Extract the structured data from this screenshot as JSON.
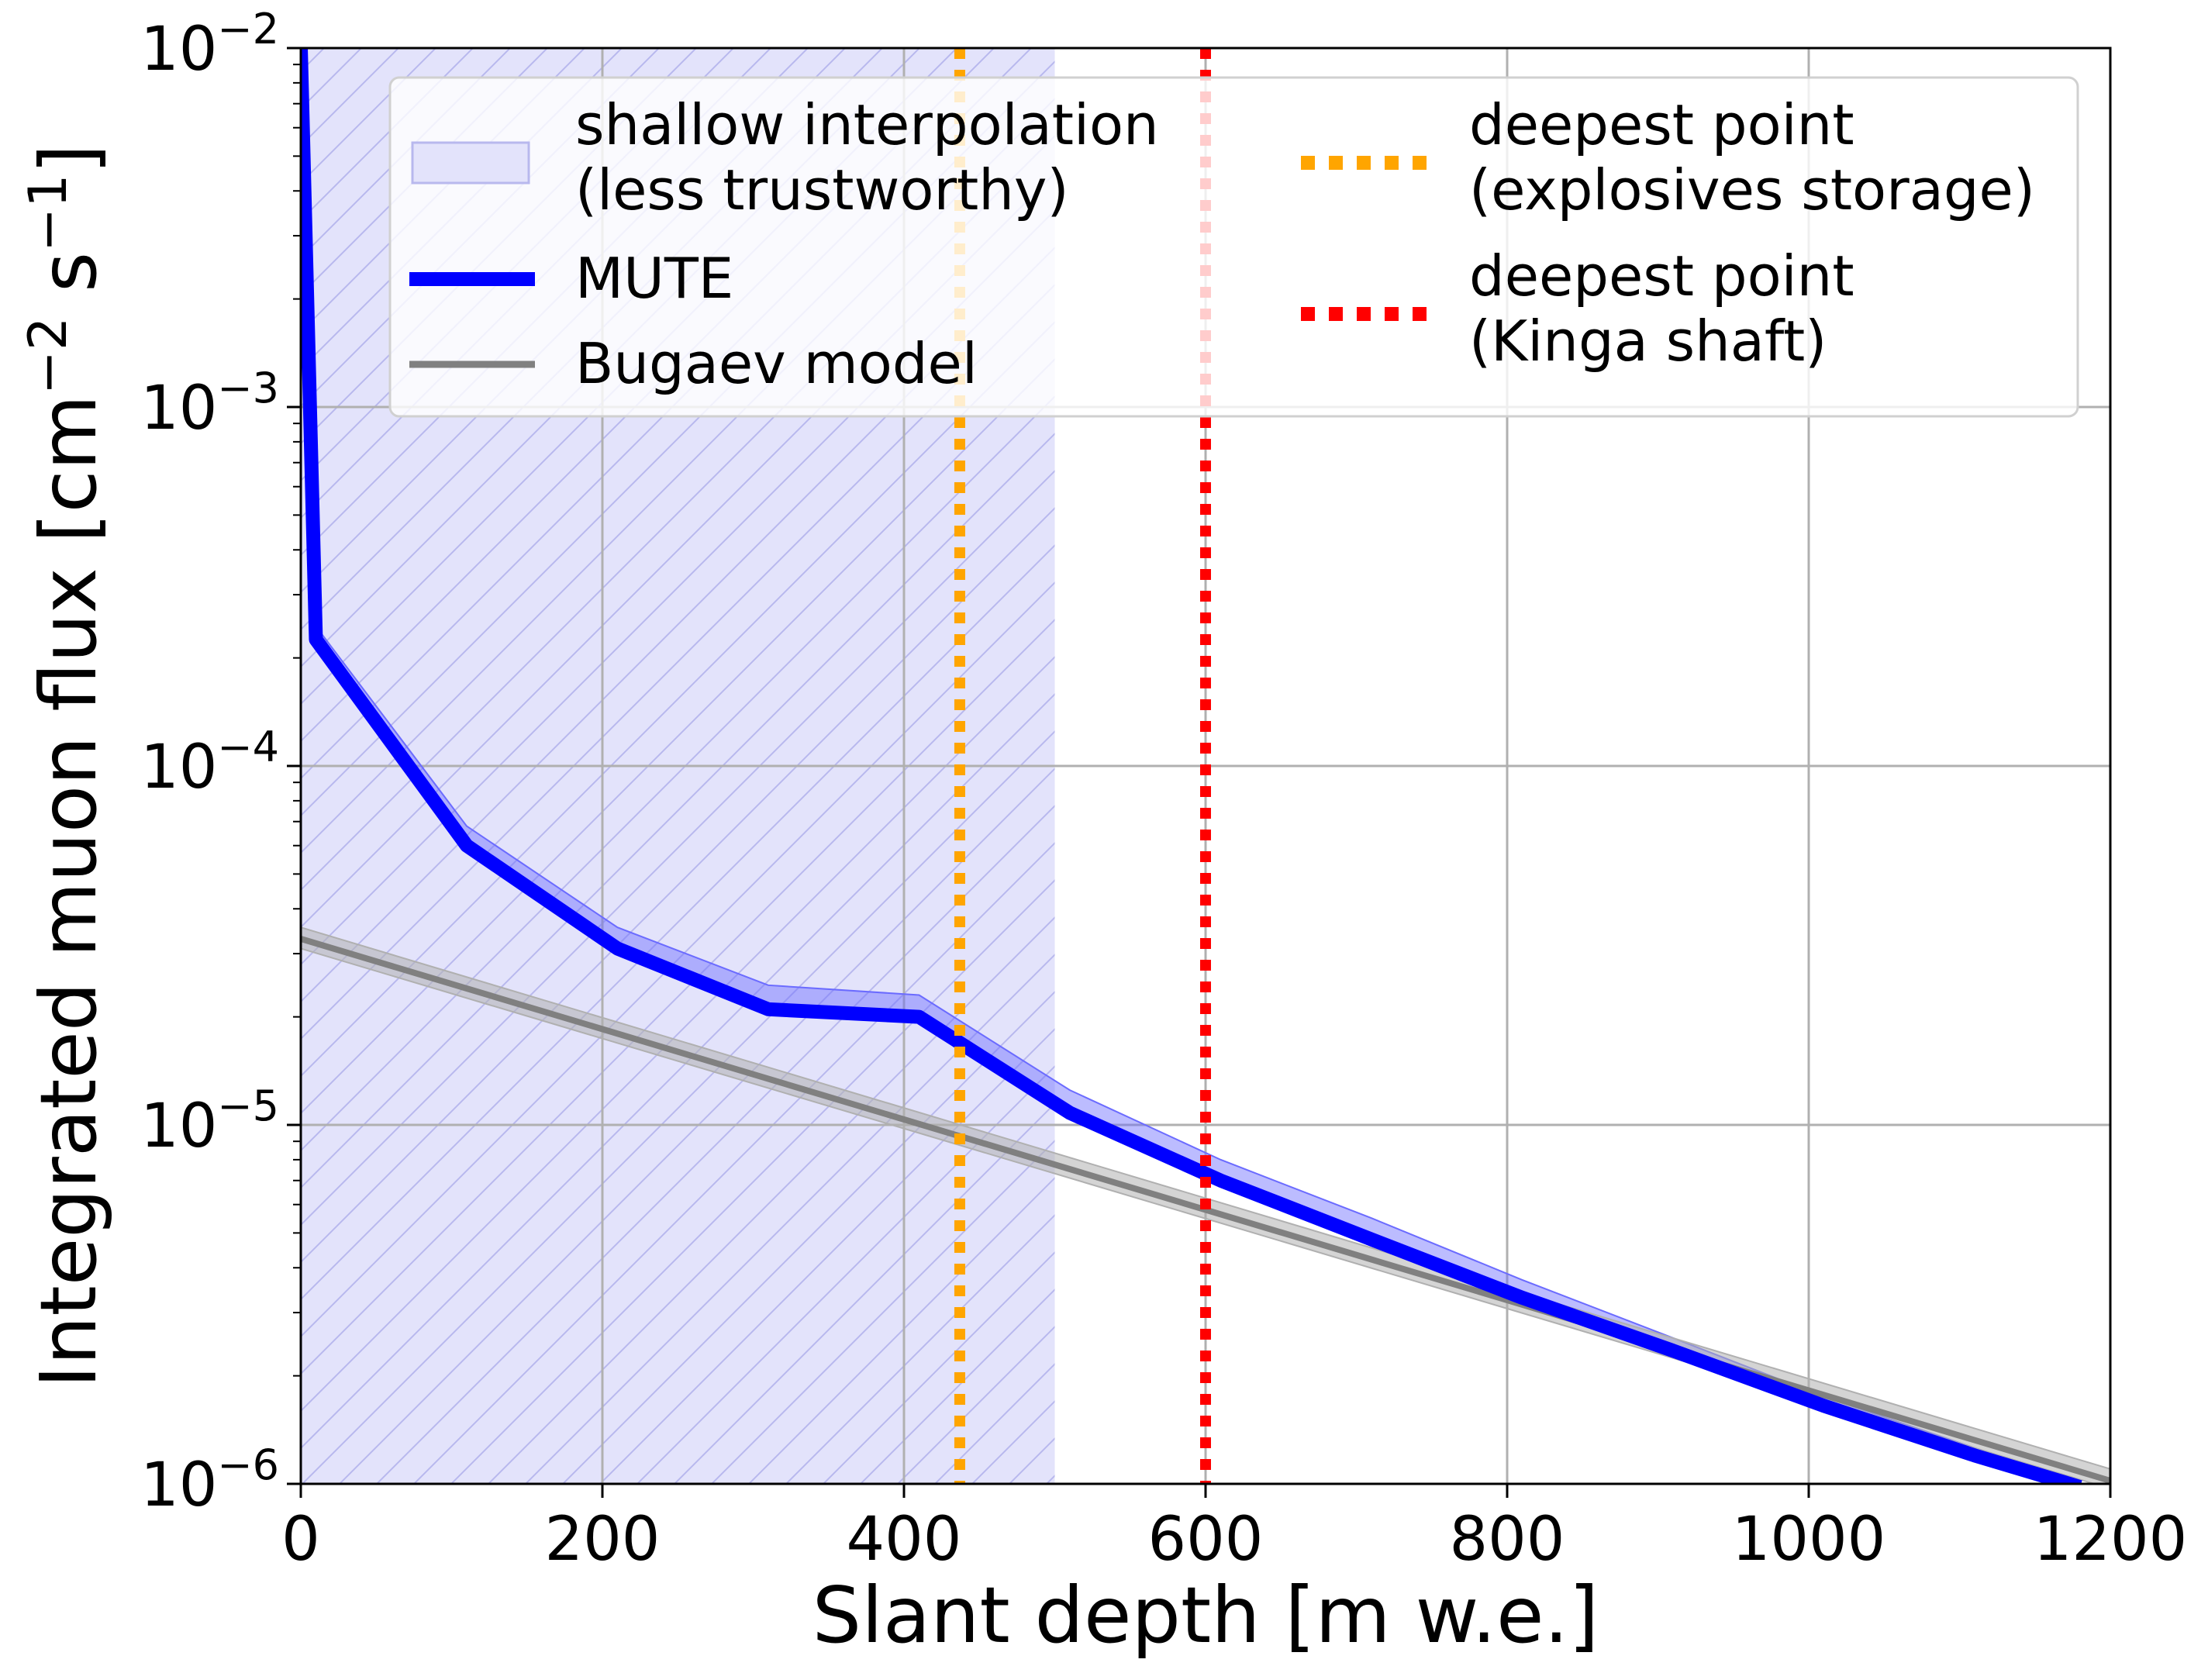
{
  "chart_data": {
    "type": "line",
    "xlabel": "Slant depth [m w.e.]",
    "ylabel_base": "Integrated muon flux [cm",
    "ylabel_exp1": "−2",
    "ylabel_mid": " s",
    "ylabel_exp2": "−1",
    "ylabel_end": "]",
    "xlim": [
      0,
      1200
    ],
    "ylim": [
      1e-06,
      0.01
    ],
    "yscale": "log",
    "grid": true,
    "legend_position": "top",
    "x_ticks": [
      {
        "value": 0,
        "label": "0"
      },
      {
        "value": 200,
        "label": "200"
      },
      {
        "value": 400,
        "label": "400"
      },
      {
        "value": 600,
        "label": "600"
      },
      {
        "value": 800,
        "label": "800"
      },
      {
        "value": 1000,
        "label": "1000"
      },
      {
        "value": 1200,
        "label": "1200"
      }
    ],
    "y_ticks": [
      {
        "value": 1e-06,
        "base": "10",
        "exp": "−6"
      },
      {
        "value": 1e-05,
        "base": "10",
        "exp": "−5"
      },
      {
        "value": 0.0001,
        "base": "10",
        "exp": "−4"
      },
      {
        "value": 0.001,
        "base": "10",
        "exp": "−3"
      },
      {
        "value": 0.01,
        "base": "10",
        "exp": "−2"
      }
    ],
    "shallow_region": {
      "name_line1": "shallow interpolation",
      "name_line2": "(less trustworthy)",
      "x_range": [
        0,
        500
      ],
      "color": "#e3e3fb",
      "hatch_color": "#b8b8ee"
    },
    "series": [
      {
        "name": "MUTE",
        "color": "#0000ff",
        "band_color": "#6b6bff",
        "x": [
          0,
          10,
          110,
          210,
          310,
          410,
          510,
          610,
          710,
          810,
          910,
          1010,
          1110,
          1180
        ],
        "y": [
          0.01,
          0.000225,
          6e-05,
          3.1e-05,
          2.1e-05,
          2e-05,
          1.08e-05,
          7e-06,
          4.8e-06,
          3.3e-06,
          2.35e-06,
          1.65e-06,
          1.2e-06,
          9.8e-07
        ],
        "upper": [
          0.01,
          0.000245,
          6.8e-05,
          3.55e-05,
          2.45e-05,
          2.3e-05,
          1.25e-05,
          8e-06,
          5.5e-06,
          3.7e-06,
          2.55e-06,
          1.75e-06,
          1.26e-06,
          1.02e-06
        ],
        "lower": [
          0.01,
          0.000215,
          5.8e-05,
          3e-05,
          2.05e-05,
          1.95e-05,
          1.04e-05,
          6.8e-06,
          4.6e-06,
          3.2e-06,
          2.28e-06,
          1.6e-06,
          1.16e-06,
          9.5e-07
        ]
      },
      {
        "name": "Bugaev model",
        "color": "#808080",
        "band_color": "#b0b0b0",
        "x": [
          0,
          1200
        ],
        "y": [
          3.3e-05,
          1.02e-06
        ],
        "upper": [
          3.55e-05,
          1.1e-06
        ],
        "lower": [
          3.1e-05,
          9.7e-07
        ]
      }
    ],
    "vlines": [
      {
        "name_line1": "deepest point",
        "name_line2": "(explosives storage)",
        "x": 437,
        "color": "#ffa500"
      },
      {
        "name_line1": "deepest point",
        "name_line2": "(Kinga shaft)",
        "x": 600,
        "color": "#ff0000"
      }
    ]
  }
}
